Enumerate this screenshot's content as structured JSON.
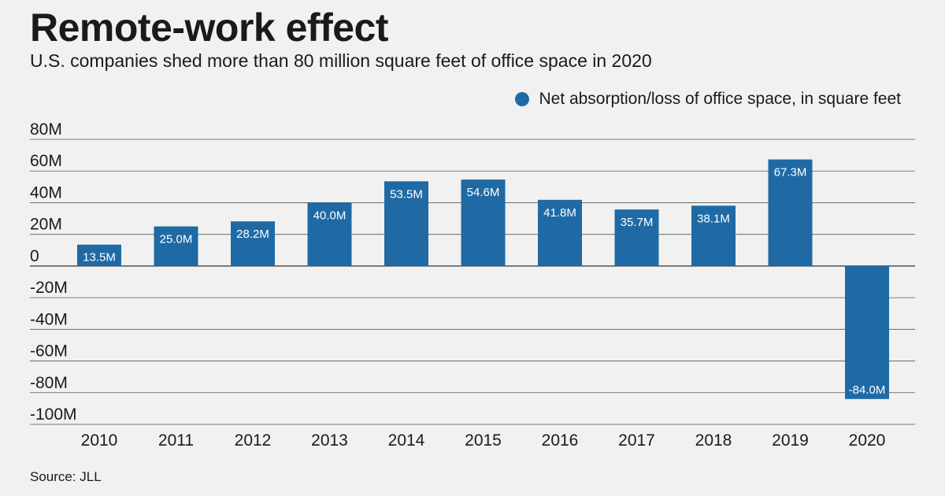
{
  "chart_data": {
    "type": "bar",
    "title": "Remote-work effect",
    "subtitle": "U.S. companies shed more than 80 million square feet of office space in 2020",
    "legend": "Net absorption/loss of office space, in square feet",
    "categories": [
      "2010",
      "2011",
      "2012",
      "2013",
      "2014",
      "2015",
      "2016",
      "2017",
      "2018",
      "2019",
      "2020"
    ],
    "values": [
      13.5,
      25.0,
      28.2,
      40.0,
      53.5,
      54.6,
      41.8,
      35.7,
      38.1,
      67.3,
      -84.0
    ],
    "value_labels": [
      "13.5M",
      "25.0M",
      "28.2M",
      "40.0M",
      "53.5M",
      "54.6M",
      "41.8M",
      "35.7M",
      "38.1M",
      "67.3M",
      "-84.0M"
    ],
    "yticks": [
      80,
      60,
      40,
      20,
      0,
      -20,
      -40,
      -60,
      -80,
      -100
    ],
    "ytick_labels": [
      "80M",
      "60M",
      "40M",
      "20M",
      "0",
      "-20M",
      "-40M",
      "-60M",
      "-80M",
      "-100M"
    ],
    "ylim": [
      -100,
      80
    ],
    "unit": "million square feet",
    "grid": true,
    "legend_position": "top-right",
    "bar_color": "#1f6aa5",
    "source": "Source: JLL"
  }
}
